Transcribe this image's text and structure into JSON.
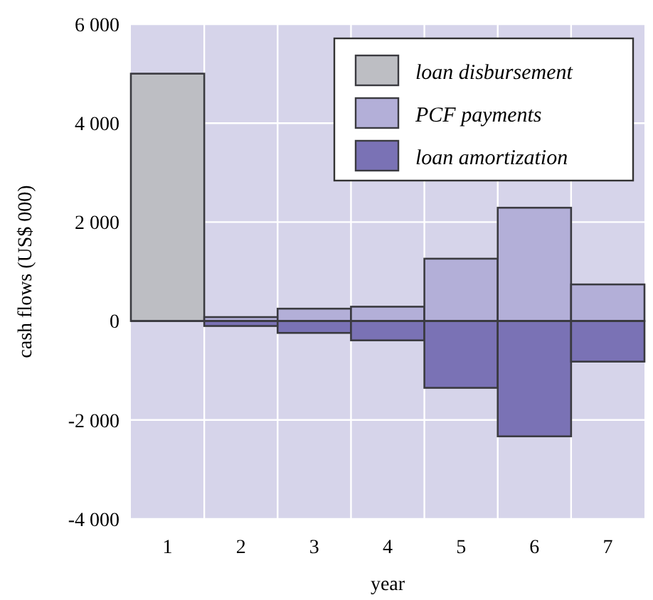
{
  "chart_data": {
    "type": "bar",
    "xlabel": "year",
    "ylabel": "cash flows (US$ 000)",
    "categories": [
      "1",
      "2",
      "3",
      "4",
      "5",
      "6",
      "7"
    ],
    "series": [
      {
        "name": "loan disbursement",
        "color": "#bdbec3",
        "values": [
          5000,
          null,
          null,
          null,
          null,
          null,
          null
        ]
      },
      {
        "name": "PCF payments",
        "color": "#b3afd8",
        "values": [
          null,
          80,
          250,
          290,
          1260,
          2290,
          740
        ]
      },
      {
        "name": "loan amortization",
        "color": "#7a72b5",
        "values": [
          null,
          -100,
          -240,
          -390,
          -1350,
          -2330,
          -820
        ]
      }
    ],
    "ylim": [
      -4000,
      6000
    ],
    "yticks": [
      {
        "value": -4000,
        "label": "-4 000"
      },
      {
        "value": -2000,
        "label": "-2 000"
      },
      0,
      {
        "value": 2000,
        "label": "2 000"
      },
      {
        "value": 4000,
        "label": "4 000"
      },
      {
        "value": 6000,
        "label": "6 000"
      }
    ],
    "stacked": true,
    "grid": true,
    "legend": "top right"
  }
}
